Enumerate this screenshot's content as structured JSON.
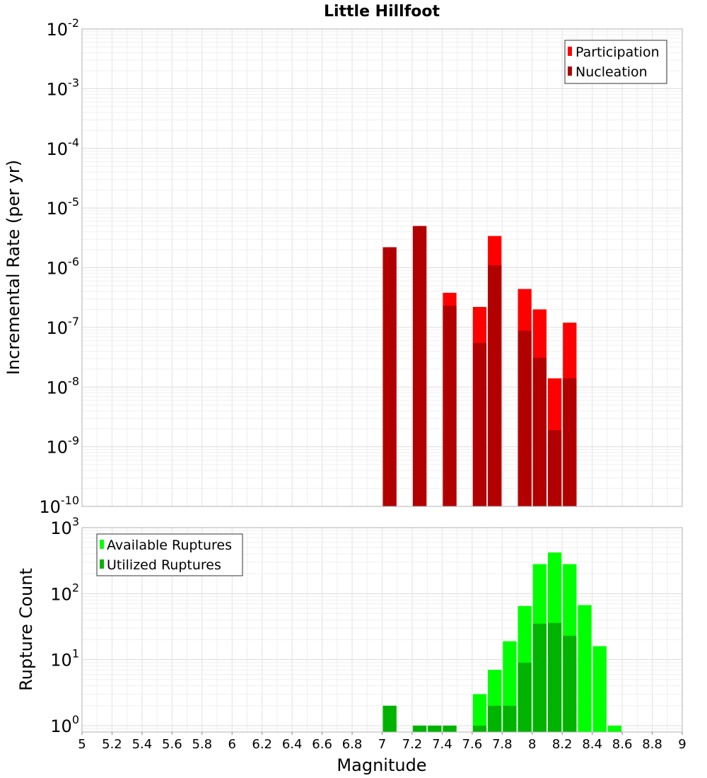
{
  "chart_data": [
    {
      "type": "bar",
      "title": "Little Hillfoot",
      "xlabel": "",
      "ylabel": "Incremental Rate (per yr)",
      "xlim": [
        5,
        9
      ],
      "ylim": [
        1e-10,
        0.01
      ],
      "yscale": "log",
      "grid": true,
      "legend_position": "top-right",
      "bin_width": 0.1,
      "series": [
        {
          "name": "Participation",
          "color": "#ff0000",
          "x": [
            7.05,
            7.25,
            7.45,
            7.65,
            7.75,
            7.95,
            8.05,
            8.15,
            8.25
          ],
          "values": [
            2.2e-06,
            5e-06,
            3.8e-07,
            2.2e-07,
            3.4e-06,
            4.4e-07,
            2e-07,
            1.4e-08,
            1.2e-07
          ]
        },
        {
          "name": "Nucleation",
          "color": "#b20000",
          "x": [
            7.05,
            7.25,
            7.45,
            7.65,
            7.75,
            7.95,
            8.05,
            8.15,
            8.25
          ],
          "values": [
            2.2e-06,
            5e-06,
            2.3e-07,
            5.5e-08,
            1.1e-06,
            8.8e-08,
            3.1e-08,
            1.9e-09,
            1.4e-08
          ]
        }
      ]
    },
    {
      "type": "bar",
      "title": "",
      "xlabel": "Magnitude",
      "ylabel": "Rupture Count",
      "xlim": [
        5,
        9
      ],
      "ylim": [
        0.8,
        1000
      ],
      "yscale": "log",
      "grid": true,
      "legend_position": "top-left",
      "bin_width": 0.1,
      "x_ticks": [
        "5",
        "5.2",
        "5.4",
        "5.6",
        "5.8",
        "6",
        "6.2",
        "6.4",
        "6.6",
        "6.8",
        "7",
        "7.2",
        "7.4",
        "7.6",
        "7.8",
        "8",
        "8.2",
        "8.4",
        "8.6",
        "8.8",
        "9"
      ],
      "series": [
        {
          "name": "Available Ruptures",
          "color": "#00ff00",
          "x": [
            7.05,
            7.25,
            7.35,
            7.45,
            7.65,
            7.75,
            7.85,
            7.95,
            8.05,
            8.15,
            8.25,
            8.35,
            8.45,
            8.55
          ],
          "values": [
            2,
            1,
            1,
            1,
            3,
            7,
            19,
            65,
            280,
            420,
            280,
            67,
            16,
            1
          ]
        },
        {
          "name": "Utilized Ruptures",
          "color": "#00b300",
          "x": [
            7.05,
            7.25,
            7.35,
            7.45,
            7.65,
            7.75,
            7.85,
            7.95,
            8.05,
            8.15,
            8.25
          ],
          "values": [
            2,
            1,
            1,
            1,
            1,
            2,
            2,
            9,
            35,
            36,
            23
          ]
        }
      ]
    }
  ]
}
